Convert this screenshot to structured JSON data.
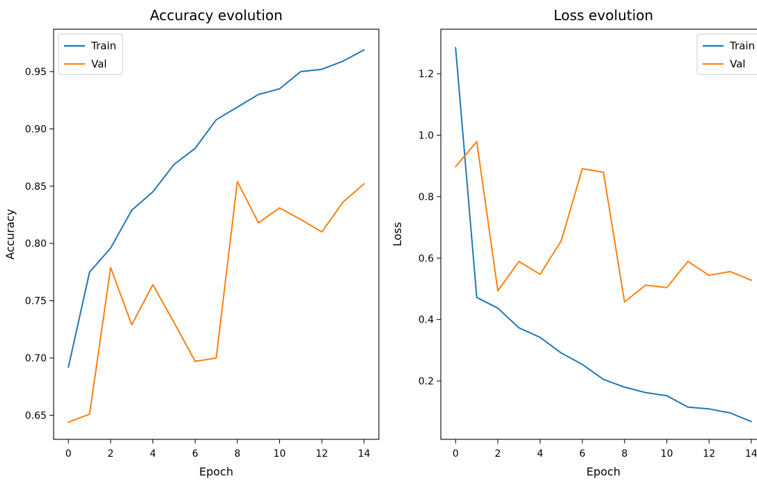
{
  "chart_data": [
    {
      "type": "line",
      "title": "Accuracy evolution",
      "xlabel": "Epoch",
      "ylabel": "Accuracy",
      "xlim": [
        -0.7,
        14.7
      ],
      "ylim": [
        0.629,
        0.987
      ],
      "xticks": [
        0,
        2,
        4,
        6,
        8,
        10,
        12,
        14
      ],
      "yticks": [
        0.65,
        0.7,
        0.75,
        0.8,
        0.85,
        0.9,
        0.95
      ],
      "ytick_labels": [
        "0.65",
        "0.70",
        "0.75",
        "0.80",
        "0.85",
        "0.90",
        "0.95"
      ],
      "grid": false,
      "legend": "upper-left",
      "x": [
        0,
        1,
        2,
        3,
        4,
        5,
        6,
        7,
        8,
        9,
        10,
        11,
        12,
        13,
        14
      ],
      "series": [
        {
          "name": "Train",
          "color": "#1f77b4",
          "values": [
            0.692,
            0.775,
            0.796,
            0.829,
            0.845,
            0.869,
            0.883,
            0.908,
            0.919,
            0.93,
            0.935,
            0.95,
            0.952,
            0.959,
            0.969
          ]
        },
        {
          "name": "Val",
          "color": "#ff7f0e",
          "values": [
            0.644,
            0.651,
            0.779,
            0.729,
            0.764,
            0.731,
            0.697,
            0.7,
            0.854,
            0.818,
            0.831,
            0.821,
            0.81,
            0.836,
            0.852
          ]
        }
      ]
    },
    {
      "type": "line",
      "title": "Loss evolution",
      "xlabel": "Epoch",
      "ylabel": "Loss",
      "xlim": [
        -0.7,
        14.7
      ],
      "ylim": [
        0.01,
        1.345
      ],
      "xticks": [
        0,
        2,
        4,
        6,
        8,
        10,
        12,
        14
      ],
      "yticks": [
        0.2,
        0.4,
        0.6,
        0.8,
        1.0,
        1.2
      ],
      "ytick_labels": [
        "0.2",
        "0.4",
        "0.6",
        "0.8",
        "1.0",
        "1.2"
      ],
      "grid": false,
      "legend": "upper-right",
      "x": [
        0,
        1,
        2,
        3,
        4,
        5,
        6,
        7,
        8,
        9,
        10,
        11,
        12,
        13,
        14
      ],
      "series": [
        {
          "name": "Train",
          "color": "#1f77b4",
          "values": [
            1.285,
            0.472,
            0.437,
            0.373,
            0.342,
            0.291,
            0.254,
            0.205,
            0.18,
            0.162,
            0.152,
            0.115,
            0.109,
            0.096,
            0.068
          ]
        },
        {
          "name": "Val",
          "color": "#ff7f0e",
          "values": [
            0.898,
            0.979,
            0.493,
            0.589,
            0.547,
            0.656,
            0.891,
            0.879,
            0.457,
            0.512,
            0.504,
            0.589,
            0.544,
            0.556,
            0.528
          ]
        }
      ]
    }
  ]
}
